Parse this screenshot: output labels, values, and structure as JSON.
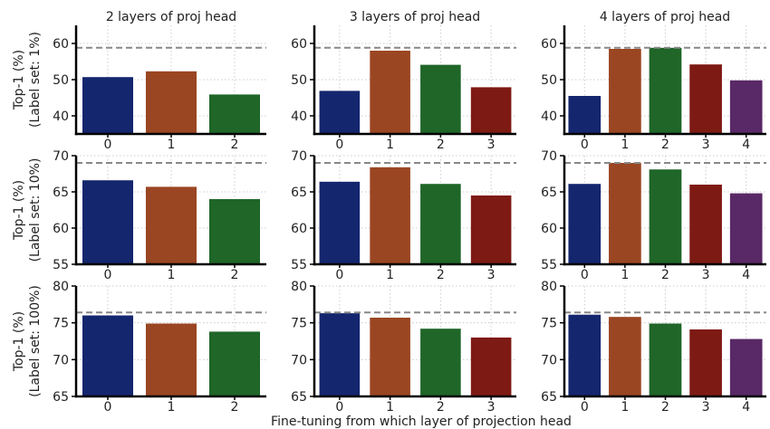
{
  "chart_data": {
    "type": "bar",
    "xlabel": "Fine-tuning from which layer of projection head",
    "colors": [
      "#14266e",
      "#9a4622",
      "#1f6628",
      "#7e1a14",
      "#592866"
    ],
    "reference_line_color": "#888888",
    "grid": true,
    "column_titles": [
      "2 layers of proj head",
      "3 layers of proj head",
      "4 layers of proj head"
    ],
    "rows": [
      {
        "ylabel": "Top-1 (%)",
        "ylabel2": "(Label set: 1%)",
        "ylim": [
          35,
          65
        ],
        "yticks": [
          40,
          50,
          60
        ],
        "reference": 58.8,
        "panels": [
          {
            "categories": [
              "0",
              "1",
              "2"
            ],
            "values": [
              50.7,
              52.3,
              45.9
            ]
          },
          {
            "categories": [
              "0",
              "1",
              "2",
              "3"
            ],
            "values": [
              46.9,
              58.0,
              54.1,
              47.9
            ]
          },
          {
            "categories": [
              "0",
              "1",
              "2",
              "3",
              "4"
            ],
            "values": [
              45.5,
              58.5,
              58.8,
              54.2,
              49.8
            ]
          }
        ]
      },
      {
        "ylabel": "Top-1 (%)",
        "ylabel2": "(Label set: 10%)",
        "ylim": [
          55,
          70
        ],
        "yticks": [
          55,
          60,
          65,
          70
        ],
        "reference": 69.0,
        "panels": [
          {
            "categories": [
              "0",
              "1",
              "2"
            ],
            "values": [
              66.6,
              65.7,
              64.0
            ]
          },
          {
            "categories": [
              "0",
              "1",
              "2",
              "3"
            ],
            "values": [
              66.4,
              68.4,
              66.1,
              64.5
            ]
          },
          {
            "categories": [
              "0",
              "1",
              "2",
              "3",
              "4"
            ],
            "values": [
              66.1,
              69.0,
              68.1,
              66.0,
              64.8
            ]
          }
        ]
      },
      {
        "ylabel": "Top-1 (%)",
        "ylabel2": "(Label set: 100%)",
        "ylim": [
          65,
          80
        ],
        "yticks": [
          65,
          70,
          75,
          80
        ],
        "reference": 76.4,
        "panels": [
          {
            "categories": [
              "0",
              "1",
              "2"
            ],
            "values": [
              76.0,
              74.9,
              73.8
            ]
          },
          {
            "categories": [
              "0",
              "1",
              "2",
              "3"
            ],
            "values": [
              76.3,
              75.7,
              74.2,
              73.0
            ]
          },
          {
            "categories": [
              "0",
              "1",
              "2",
              "3",
              "4"
            ],
            "values": [
              76.1,
              75.8,
              74.9,
              74.1,
              72.8
            ]
          }
        ]
      }
    ]
  }
}
